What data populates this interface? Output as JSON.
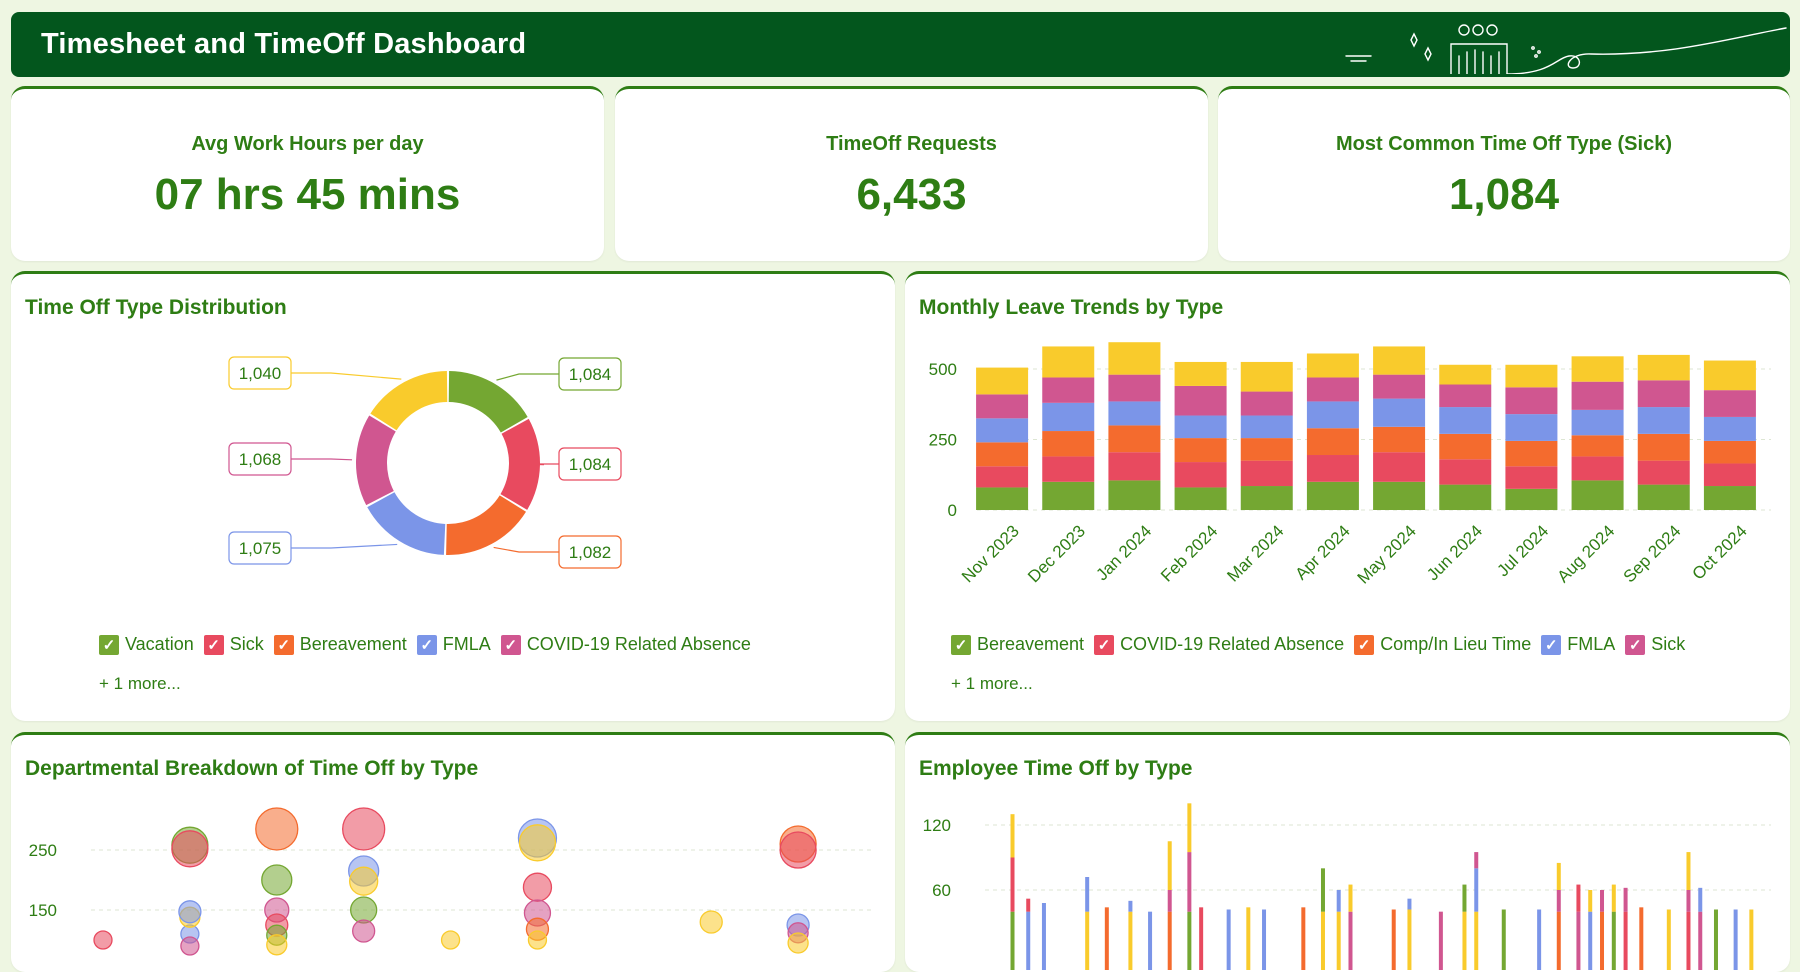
{
  "header": {
    "title": "Timesheet and TimeOff Dashboard"
  },
  "kpis": [
    {
      "label": "Avg Work Hours per day",
      "value": "07 hrs 45 mins"
    },
    {
      "label": "TimeOff Requests",
      "value": "6,433"
    },
    {
      "label": "Most Common Time Off Type (Sick)",
      "value": "1,084"
    }
  ],
  "colors": {
    "brand": "#03561d",
    "accent": "#2e7d14",
    "Vacation": "#74a732",
    "Sick": "#e84a5f",
    "Bereavement": "#f46b2e",
    "FMLA": "#7b95e8",
    "COVID-19 Related Absence": "#d05690",
    "Comp/In Lieu Time": "#f9cb2c",
    "Green": "#5b9c2a"
  },
  "donut": {
    "title": "Time Off Type Distribution",
    "legend": [
      {
        "label": "Vacation",
        "color": "#74a732"
      },
      {
        "label": "Sick",
        "color": "#e84a5f"
      },
      {
        "label": "Bereavement",
        "color": "#f46b2e"
      },
      {
        "label": "FMLA",
        "color": "#7b95e8"
      },
      {
        "label": "COVID-19 Related Absence",
        "color": "#d05690"
      }
    ],
    "more": "+ 1 more..."
  },
  "stack": {
    "title": "Monthly Leave Trends by Type",
    "legend": [
      {
        "label": "Bereavement",
        "color": "#74a732"
      },
      {
        "label": "COVID-19 Related Absence",
        "color": "#e84a5f"
      },
      {
        "label": "Comp/In Lieu Time",
        "color": "#f46b2e"
      },
      {
        "label": "FMLA",
        "color": "#7b95e8"
      },
      {
        "label": "Sick",
        "color": "#d05690"
      }
    ],
    "more": "+ 1 more..."
  },
  "bubble": {
    "title": "Departmental Breakdown of Time Off by Type"
  },
  "empbar": {
    "title": "Employee Time Off by Type"
  },
  "chart_data": [
    {
      "type": "pie",
      "title": "Time Off Type Distribution",
      "categories": [
        "Vacation",
        "Sick",
        "Bereavement",
        "FMLA",
        "COVID-19 Related Absence",
        "Comp/In Lieu Time"
      ],
      "values": [
        1084,
        1084,
        1082,
        1075,
        1068,
        1040
      ],
      "labels": [
        "1,084",
        "1,084",
        "1,082",
        "1,075",
        "1,068",
        "1,040"
      ],
      "colors": [
        "#74a732",
        "#e84a5f",
        "#f46b2e",
        "#7b95e8",
        "#d05690",
        "#f9cb2c"
      ],
      "donut": true
    },
    {
      "type": "bar",
      "stacked": true,
      "title": "Monthly Leave Trends by Type",
      "categories": [
        "Nov 2023",
        "Dec 2023",
        "Jan 2024",
        "Feb 2024",
        "Mar 2024",
        "Apr 2024",
        "May 2024",
        "Jun 2024",
        "Jul 2024",
        "Aug 2024",
        "Sep 2024",
        "Oct 2024"
      ],
      "series": [
        {
          "name": "Bereavement",
          "color": "#74a732",
          "values": [
            80,
            100,
            105,
            80,
            85,
            100,
            100,
            90,
            75,
            105,
            90,
            85
          ]
        },
        {
          "name": "COVID-19 Related Absence",
          "color": "#e84a5f",
          "values": [
            75,
            90,
            100,
            90,
            90,
            95,
            105,
            90,
            80,
            85,
            85,
            80
          ]
        },
        {
          "name": "Comp/In Lieu Time",
          "color": "#f46b2e",
          "values": [
            85,
            90,
            95,
            85,
            80,
            95,
            90,
            90,
            90,
            75,
            95,
            80
          ]
        },
        {
          "name": "FMLA",
          "color": "#7b95e8",
          "values": [
            85,
            100,
            85,
            80,
            80,
            95,
            100,
            95,
            95,
            90,
            95,
            85
          ]
        },
        {
          "name": "Sick",
          "color": "#d05690",
          "values": [
            85,
            90,
            95,
            105,
            85,
            85,
            85,
            80,
            95,
            100,
            95,
            95
          ]
        },
        {
          "name": "Comp/In Lieu Time",
          "color": "#f9cb2c",
          "values": [
            95,
            110,
            115,
            85,
            105,
            85,
            100,
            70,
            80,
            90,
            90,
            105
          ]
        }
      ],
      "ylim": [
        0,
        560
      ],
      "yticks": [
        0,
        250,
        500
      ],
      "grid": true,
      "legend": "bottom"
    },
    {
      "type": "scatter",
      "title": "Departmental Breakdown of Time Off by Type",
      "yticks": [
        150,
        250
      ],
      "ylim": [
        90,
        300
      ],
      "categories_count": 9,
      "points": [
        {
          "x": 0,
          "y": 100,
          "r": 9,
          "color": "#e84a5f"
        },
        {
          "x": 1,
          "y": 110,
          "r": 9,
          "color": "#7b95e8"
        },
        {
          "x": 1,
          "y": 138,
          "r": 10,
          "color": "#f9cb2c"
        },
        {
          "x": 1,
          "y": 147,
          "r": 11,
          "color": "#7b95e8"
        },
        {
          "x": 1,
          "y": 258,
          "r": 18,
          "color": "#74a732"
        },
        {
          "x": 1,
          "y": 252,
          "r": 18,
          "color": "#e84a5f"
        },
        {
          "x": 1,
          "y": 90,
          "r": 9,
          "color": "#d05690"
        },
        {
          "x": 2,
          "y": 285,
          "r": 21,
          "color": "#f46b2e"
        },
        {
          "x": 2,
          "y": 200,
          "r": 15,
          "color": "#74a732"
        },
        {
          "x": 2,
          "y": 150,
          "r": 12,
          "color": "#d05690"
        },
        {
          "x": 2,
          "y": 125,
          "r": 11,
          "color": "#e84a5f"
        },
        {
          "x": 2,
          "y": 108,
          "r": 10,
          "color": "#74a732"
        },
        {
          "x": 2,
          "y": 92,
          "r": 10,
          "color": "#f9cb2c"
        },
        {
          "x": 3,
          "y": 285,
          "r": 21,
          "color": "#e84a5f"
        },
        {
          "x": 3,
          "y": 215,
          "r": 15,
          "color": "#7b95e8"
        },
        {
          "x": 3,
          "y": 198,
          "r": 14,
          "color": "#f9cb2c"
        },
        {
          "x": 3,
          "y": 150,
          "r": 13,
          "color": "#74a732"
        },
        {
          "x": 3,
          "y": 115,
          "r": 11,
          "color": "#d05690"
        },
        {
          "x": 4,
          "y": 100,
          "r": 9,
          "color": "#f9cb2c"
        },
        {
          "x": 5,
          "y": 270,
          "r": 19,
          "color": "#7b95e8"
        },
        {
          "x": 5,
          "y": 262,
          "r": 18,
          "color": "#f9cb2c"
        },
        {
          "x": 5,
          "y": 188,
          "r": 14,
          "color": "#e84a5f"
        },
        {
          "x": 5,
          "y": 145,
          "r": 13,
          "color": "#d05690"
        },
        {
          "x": 5,
          "y": 118,
          "r": 11,
          "color": "#f46b2e"
        },
        {
          "x": 5,
          "y": 100,
          "r": 9,
          "color": "#f9cb2c"
        },
        {
          "x": 7,
          "y": 130,
          "r": 11,
          "color": "#f9cb2c"
        },
        {
          "x": 8,
          "y": 260,
          "r": 18,
          "color": "#f46b2e"
        },
        {
          "x": 8,
          "y": 250,
          "r": 18,
          "color": "#e84a5f"
        },
        {
          "x": 8,
          "y": 125,
          "r": 11,
          "color": "#7b95e8"
        },
        {
          "x": 8,
          "y": 112,
          "r": 10,
          "color": "#d05690"
        },
        {
          "x": 8,
          "y": 95,
          "r": 10,
          "color": "#f9cb2c"
        }
      ],
      "grid": true
    },
    {
      "type": "bar",
      "stacked": true,
      "title": "Employee Time Off by Type",
      "yticks": [
        60,
        120
      ],
      "ylim": [
        40,
        160
      ],
      "bars": [
        {
          "x": 0.035,
          "segs": [
            [
              40,
              "#74a732"
            ],
            [
              50,
              "#e84a5f"
            ],
            [
              40,
              "#f9cb2c"
            ]
          ]
        },
        {
          "x": 0.055,
          "segs": [
            [
              40,
              "#7b95e8"
            ],
            [
              12,
              "#e84a5f"
            ]
          ]
        },
        {
          "x": 0.075,
          "segs": [
            [
              48,
              "#7b95e8"
            ]
          ]
        },
        {
          "x": 0.13,
          "segs": [
            [
              40,
              "#f9cb2c"
            ],
            [
              32,
              "#7b95e8"
            ]
          ]
        },
        {
          "x": 0.155,
          "segs": [
            [
              44,
              "#f46b2e"
            ]
          ]
        },
        {
          "x": 0.185,
          "segs": [
            [
              40,
              "#f9cb2c"
            ],
            [
              10,
              "#7b95e8"
            ]
          ]
        },
        {
          "x": 0.21,
          "segs": [
            [
              40,
              "#7b95e8"
            ]
          ]
        },
        {
          "x": 0.235,
          "segs": [
            [
              40,
              "#f46b2e"
            ],
            [
              20,
              "#d05690"
            ],
            [
              45,
              "#f9cb2c"
            ]
          ]
        },
        {
          "x": 0.26,
          "segs": [
            [
              40,
              "#74a732"
            ],
            [
              55,
              "#d05690"
            ],
            [
              45,
              "#f9cb2c"
            ]
          ]
        },
        {
          "x": 0.275,
          "segs": [
            [
              44,
              "#e84a5f"
            ]
          ]
        },
        {
          "x": 0.31,
          "segs": [
            [
              42,
              "#7b95e8"
            ]
          ]
        },
        {
          "x": 0.335,
          "segs": [
            [
              44,
              "#f9cb2c"
            ]
          ]
        },
        {
          "x": 0.355,
          "segs": [
            [
              42,
              "#7b95e8"
            ]
          ]
        },
        {
          "x": 0.405,
          "segs": [
            [
              44,
              "#f46b2e"
            ]
          ]
        },
        {
          "x": 0.43,
          "segs": [
            [
              40,
              "#f9cb2c"
            ],
            [
              40,
              "#74a732"
            ]
          ]
        },
        {
          "x": 0.45,
          "segs": [
            [
              40,
              "#f9cb2c"
            ],
            [
              20,
              "#7b95e8"
            ]
          ]
        },
        {
          "x": 0.465,
          "segs": [
            [
              40,
              "#d05690"
            ],
            [
              25,
              "#f9cb2c"
            ]
          ]
        },
        {
          "x": 0.52,
          "segs": [
            [
              42,
              "#f46b2e"
            ]
          ]
        },
        {
          "x": 0.54,
          "segs": [
            [
              42,
              "#f9cb2c"
            ],
            [
              10,
              "#7b95e8"
            ]
          ]
        },
        {
          "x": 0.58,
          "segs": [
            [
              40,
              "#d05690"
            ]
          ]
        },
        {
          "x": 0.61,
          "segs": [
            [
              40,
              "#f9cb2c"
            ],
            [
              25,
              "#74a732"
            ]
          ]
        },
        {
          "x": 0.625,
          "segs": [
            [
              40,
              "#f9cb2c"
            ],
            [
              40,
              "#7b95e8"
            ],
            [
              15,
              "#d05690"
            ]
          ]
        },
        {
          "x": 0.66,
          "segs": [
            [
              42,
              "#74a732"
            ]
          ]
        },
        {
          "x": 0.705,
          "segs": [
            [
              42,
              "#7b95e8"
            ]
          ]
        },
        {
          "x": 0.73,
          "segs": [
            [
              40,
              "#f46b2e"
            ],
            [
              20,
              "#d05690"
            ],
            [
              25,
              "#f9cb2c"
            ]
          ]
        },
        {
          "x": 0.755,
          "segs": [
            [
              40,
              "#d05690"
            ],
            [
              25,
              "#e84a5f"
            ]
          ]
        },
        {
          "x": 0.77,
          "segs": [
            [
              40,
              "#7b95e8"
            ],
            [
              20,
              "#f9cb2c"
            ]
          ]
        },
        {
          "x": 0.785,
          "segs": [
            [
              40,
              "#f46b2e"
            ],
            [
              20,
              "#d05690"
            ]
          ]
        },
        {
          "x": 0.8,
          "segs": [
            [
              40,
              "#74a732"
            ],
            [
              25,
              "#f9cb2c"
            ]
          ]
        },
        {
          "x": 0.815,
          "segs": [
            [
              40,
              "#e84a5f"
            ],
            [
              22,
              "#d05690"
            ]
          ]
        },
        {
          "x": 0.835,
          "segs": [
            [
              44,
              "#f46b2e"
            ]
          ]
        },
        {
          "x": 0.87,
          "segs": [
            [
              42,
              "#f9cb2c"
            ]
          ]
        },
        {
          "x": 0.895,
          "segs": [
            [
              40,
              "#e84a5f"
            ],
            [
              20,
              "#d05690"
            ],
            [
              35,
              "#f9cb2c"
            ]
          ]
        },
        {
          "x": 0.91,
          "segs": [
            [
              40,
              "#d05690"
            ],
            [
              22,
              "#7b95e8"
            ]
          ]
        },
        {
          "x": 0.93,
          "segs": [
            [
              42,
              "#74a732"
            ]
          ]
        },
        {
          "x": 0.955,
          "segs": [
            [
              42,
              "#7b95e8"
            ]
          ]
        },
        {
          "x": 0.975,
          "segs": [
            [
              42,
              "#f9cb2c"
            ]
          ]
        }
      ],
      "grid": true
    }
  ]
}
